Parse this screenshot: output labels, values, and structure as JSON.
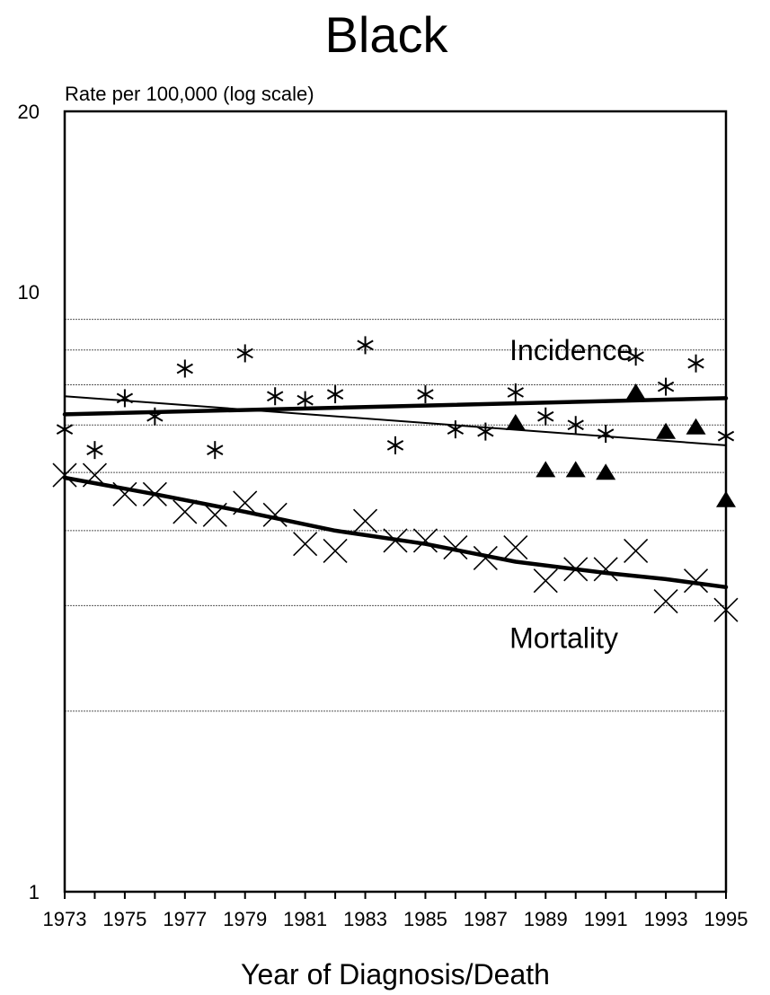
{
  "chart_data": {
    "type": "scatter",
    "title": "Black",
    "ylabel": "Rate per 100,000 (log scale)",
    "xlabel": "Year of Diagnosis/Death",
    "yscale": "log",
    "ylim": [
      1,
      20
    ],
    "xlim": [
      1973,
      1995
    ],
    "y_ticks": [
      "1",
      "10",
      "20"
    ],
    "y_tick_values": [
      1,
      10,
      20
    ],
    "x_ticks": [
      "1973",
      "1975",
      "1977",
      "1979",
      "1981",
      "1983",
      "1985",
      "1987",
      "1989",
      "1991",
      "1993",
      "1995"
    ],
    "x_tick_values": [
      1973,
      1975,
      1977,
      1979,
      1981,
      1983,
      1985,
      1987,
      1989,
      1991,
      1993,
      1995
    ],
    "gridlines": [
      9,
      8,
      7,
      6,
      5,
      4,
      3,
      2
    ],
    "annotations": [
      {
        "text": "Incidence",
        "x": 1987.8,
        "y": 7.7
      },
      {
        "text": "Mortality",
        "x": 1987.8,
        "y": 2.55
      }
    ],
    "series": [
      {
        "marker": "asterisk",
        "x": [
          1973,
          1974,
          1975,
          1976,
          1977,
          1978,
          1979,
          1980,
          1981,
          1982,
          1983,
          1984,
          1985,
          1986,
          1987,
          1988,
          1989,
          1990,
          1991,
          1992,
          1993,
          1994,
          1995
        ],
        "y": [
          5.9,
          5.45,
          6.65,
          6.2,
          7.45,
          5.45,
          7.9,
          6.7,
          6.6,
          6.75,
          8.15,
          5.55,
          6.75,
          5.9,
          5.85,
          6.8,
          6.2,
          6.0,
          5.8,
          7.8,
          6.95,
          7.6,
          5.75
        ]
      },
      {
        "marker": "triangle",
        "x": [
          1988,
          1989,
          1990,
          1991,
          1992,
          1993,
          1994,
          1995
        ],
        "y": [
          6.05,
          5.05,
          5.05,
          5.0,
          6.8,
          5.85,
          5.95,
          4.5
        ]
      },
      {
        "marker": "x",
        "x": [
          1973,
          1974,
          1975,
          1976,
          1977,
          1978,
          1979,
          1980,
          1981,
          1982,
          1983,
          1984,
          1985,
          1986,
          1987,
          1988,
          1989,
          1990,
          1991,
          1992,
          1993,
          1994,
          1995
        ],
        "y": [
          4.95,
          4.95,
          4.6,
          4.6,
          4.3,
          4.25,
          4.45,
          4.25,
          3.8,
          3.7,
          4.15,
          3.85,
          3.85,
          3.75,
          3.6,
          3.75,
          3.3,
          3.45,
          3.45,
          3.7,
          3.05,
          3.3,
          2.95
        ]
      },
      {
        "style": "trend-thick",
        "x": [
          1973,
          1995
        ],
        "y": [
          6.25,
          6.65
        ]
      },
      {
        "style": "trend-thin",
        "x": [
          1973,
          1995
        ],
        "y": [
          6.7,
          5.55
        ]
      },
      {
        "style": "trend-thick-curve",
        "x": [
          1973,
          1976,
          1979,
          1982,
          1985,
          1988,
          1991,
          1993,
          1995
        ],
        "y": [
          4.9,
          4.6,
          4.3,
          4.0,
          3.8,
          3.55,
          3.4,
          3.32,
          3.22
        ]
      }
    ]
  }
}
